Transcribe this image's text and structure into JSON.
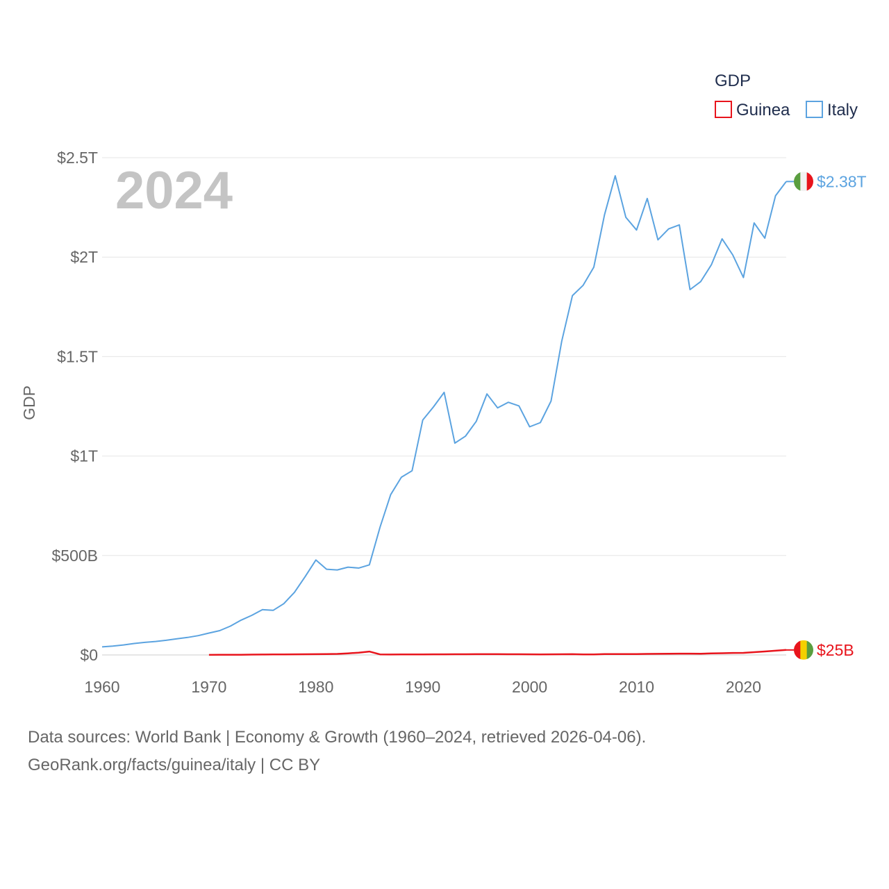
{
  "chart_data": {
    "type": "line",
    "year_label": "2024",
    "ylabel": "GDP",
    "ylim": [
      0,
      2500000000000
    ],
    "xlim": [
      1960,
      2024
    ],
    "y_ticks": [
      {
        "value": 0,
        "label": "$0"
      },
      {
        "value": 500000000000,
        "label": "$500B"
      },
      {
        "value": 1000000000000,
        "label": "$1T"
      },
      {
        "value": 1500000000000,
        "label": "$1.5T"
      },
      {
        "value": 2000000000000,
        "label": "$2T"
      },
      {
        "value": 2500000000000,
        "label": "$2.5T"
      }
    ],
    "x_ticks": [
      {
        "value": 1960,
        "label": "1960"
      },
      {
        "value": 1970,
        "label": "1970"
      },
      {
        "value": 1980,
        "label": "1980"
      },
      {
        "value": 1990,
        "label": "1990"
      },
      {
        "value": 2000,
        "label": "2000"
      },
      {
        "value": 2010,
        "label": "2010"
      },
      {
        "value": 2020,
        "label": "2020"
      }
    ],
    "legend": {
      "title": "GDP",
      "items": [
        {
          "name": "Guinea",
          "color": "#e8141c"
        },
        {
          "name": "Italy",
          "color": "#5ba3e0"
        }
      ]
    },
    "series": [
      {
        "name": "Italy",
        "color": "#5ba3e0",
        "end_label": "$2.38T",
        "flag": "italy-flag-icon",
        "points": [
          [
            1960,
            40.4
          ],
          [
            1961,
            44.8
          ],
          [
            1962,
            50.4
          ],
          [
            1963,
            57.7
          ],
          [
            1964,
            63.2
          ],
          [
            1965,
            67.9
          ],
          [
            1966,
            73.7
          ],
          [
            1967,
            81.0
          ],
          [
            1968,
            87.9
          ],
          [
            1969,
            97.1
          ],
          [
            1970,
            110.0
          ],
          [
            1971,
            122.2
          ],
          [
            1972,
            144.8
          ],
          [
            1973,
            175.0
          ],
          [
            1974,
            199.0
          ],
          [
            1975,
            227.7
          ],
          [
            1976,
            224.3
          ],
          [
            1977,
            257.7
          ],
          [
            1978,
            315.1
          ],
          [
            1979,
            394.0
          ],
          [
            1980,
            477.3
          ],
          [
            1981,
            430.7
          ],
          [
            1982,
            427.3
          ],
          [
            1983,
            441.4
          ],
          [
            1984,
            436.9
          ],
          [
            1985,
            452.7
          ],
          [
            1986,
            642.6
          ],
          [
            1987,
            805.8
          ],
          [
            1988,
            893.4
          ],
          [
            1989,
            926.0
          ],
          [
            1990,
            1181.2
          ],
          [
            1991,
            1247.0
          ],
          [
            1992,
            1320.2
          ],
          [
            1993,
            1065.1
          ],
          [
            1994,
            1100.1
          ],
          [
            1995,
            1174.1
          ],
          [
            1996,
            1312.2
          ],
          [
            1997,
            1241.9
          ],
          [
            1998,
            1270.1
          ],
          [
            1999,
            1252.1
          ],
          [
            2000,
            1147.0
          ],
          [
            2001,
            1168.0
          ],
          [
            2002,
            1276.6
          ],
          [
            2003,
            1577.5
          ],
          [
            2004,
            1806.7
          ],
          [
            2005,
            1858.2
          ],
          [
            2006,
            1949.6
          ],
          [
            2007,
            2213.1
          ],
          [
            2008,
            2408.7
          ],
          [
            2009,
            2199.9
          ],
          [
            2010,
            2136.1
          ],
          [
            2011,
            2294.6
          ],
          [
            2012,
            2087.1
          ],
          [
            2013,
            2141.9
          ],
          [
            2014,
            2162.0
          ],
          [
            2015,
            1836.6
          ],
          [
            2016,
            1877.1
          ],
          [
            2017,
            1961.8
          ],
          [
            2018,
            2091.9
          ],
          [
            2019,
            2011.3
          ],
          [
            2020,
            1897.5
          ],
          [
            2021,
            2171.7
          ],
          [
            2022,
            2095.2
          ],
          [
            2023,
            2308.4
          ],
          [
            2024,
            2380.0
          ]
        ]
      },
      {
        "name": "Guinea",
        "color": "#e8141c",
        "end_label": "$25B",
        "flag": "guinea-flag-icon",
        "points": [
          [
            1970,
            0.5
          ],
          [
            1971,
            0.6
          ],
          [
            1972,
            0.8
          ],
          [
            1973,
            1.2
          ],
          [
            1974,
            1.6
          ],
          [
            1975,
            2.0
          ],
          [
            1976,
            2.3
          ],
          [
            1977,
            2.7
          ],
          [
            1978,
            3.1
          ],
          [
            1979,
            3.5
          ],
          [
            1980,
            4.0
          ],
          [
            1981,
            4.5
          ],
          [
            1982,
            5.2
          ],
          [
            1983,
            8.0
          ],
          [
            1984,
            11.5
          ],
          [
            1985,
            17.0
          ],
          [
            1986,
            2.7
          ],
          [
            1987,
            2.2
          ],
          [
            1988,
            2.4
          ],
          [
            1989,
            2.7
          ],
          [
            1990,
            2.8
          ],
          [
            1991,
            3.0
          ],
          [
            1992,
            3.3
          ],
          [
            1993,
            3.4
          ],
          [
            1994,
            3.6
          ],
          [
            1995,
            3.7
          ],
          [
            1996,
            3.9
          ],
          [
            1997,
            3.8
          ],
          [
            1998,
            3.6
          ],
          [
            1999,
            3.5
          ],
          [
            2000,
            3.0
          ],
          [
            2001,
            2.8
          ],
          [
            2002,
            3.0
          ],
          [
            2003,
            3.4
          ],
          [
            2004,
            3.7
          ],
          [
            2005,
            2.9
          ],
          [
            2006,
            2.8
          ],
          [
            2007,
            4.1
          ],
          [
            2008,
            4.5
          ],
          [
            2009,
            4.6
          ],
          [
            2010,
            4.7
          ],
          [
            2011,
            5.1
          ],
          [
            2012,
            5.6
          ],
          [
            2013,
            6.1
          ],
          [
            2014,
            6.6
          ],
          [
            2015,
            6.7
          ],
          [
            2016,
            6.3
          ],
          [
            2017,
            7.6
          ],
          [
            2018,
            8.9
          ],
          [
            2019,
            10.1
          ],
          [
            2020,
            10.4
          ],
          [
            2021,
            13.9
          ],
          [
            2022,
            17.6
          ],
          [
            2023,
            21.2
          ],
          [
            2024,
            25.0
          ]
        ]
      }
    ],
    "value_unit": "billions USD"
  },
  "source": {
    "line1": "Data sources: World Bank | Economy & Growth (1960–2024, retrieved 2026-04-06).",
    "line2": "GeoRank.org/facts/guinea/italy | CC BY"
  }
}
